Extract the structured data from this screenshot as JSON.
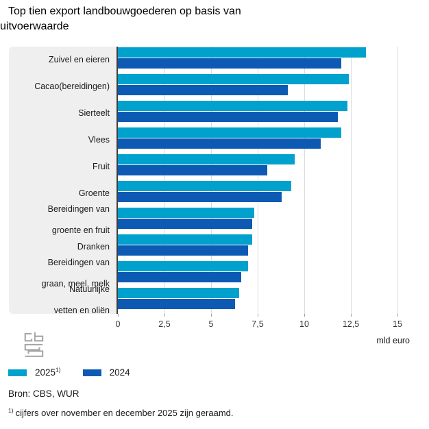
{
  "title": {
    "line1": "Top tien export landbouwgoederen op basis van",
    "line2": "uitvoerwaarde"
  },
  "chart_data": {
    "type": "bar",
    "orientation": "horizontal",
    "title": "Top tien export landbouwgoederen op basis van uitvoerwaarde",
    "xlabel": "mld euro",
    "xlim": [
      0,
      15
    ],
    "grid": true,
    "legend_position": "bottom-left",
    "x_ticks": [
      {
        "value": 0,
        "label": "0"
      },
      {
        "value": 2.5,
        "label": "2,5"
      },
      {
        "value": 5,
        "label": "5"
      },
      {
        "value": 7.5,
        "label": "7,5"
      },
      {
        "value": 10,
        "label": "10"
      },
      {
        "value": 12.5,
        "label": "12,5"
      },
      {
        "value": 15,
        "label": "15"
      }
    ],
    "categories": [
      [
        "Zuivel en eieren"
      ],
      [
        "Cacao(bereidingen)"
      ],
      [
        "Sierteelt"
      ],
      [
        "Vlees"
      ],
      [
        "Fruit"
      ],
      [
        "Groente"
      ],
      [
        "Bereidingen van",
        "groente en fruit"
      ],
      [
        "Dranken"
      ],
      [
        "Bereidingen van",
        "graan, meel, melk"
      ],
      [
        "Natuurlijke",
        "vetten en oliën"
      ]
    ],
    "series": [
      {
        "name": "2025",
        "marker": "1)",
        "color": "#00a1cd",
        "values": [
          13.3,
          12.4,
          12.3,
          12.0,
          9.5,
          9.3,
          7.3,
          7.2,
          7.0,
          6.5
        ]
      },
      {
        "name": "2024",
        "marker": "",
        "color": "#0d5ab4",
        "values": [
          12.0,
          9.1,
          11.8,
          10.9,
          8.0,
          8.8,
          7.2,
          7.0,
          6.6,
          6.3
        ]
      }
    ]
  },
  "unit_label": "mld euro",
  "legend": {
    "items": [
      {
        "label": "2025",
        "sup": "1)"
      },
      {
        "label": "2024",
        "sup": ""
      }
    ]
  },
  "source": "Bron: CBS, WUR",
  "footnote": {
    "marker": "1)",
    "text": "cijfers over november en december 2025 zijn geraamd."
  },
  "colors": {
    "series_2025": "#00a1cd",
    "series_2024": "#0d5ab4",
    "panel_bg": "#efefef",
    "gridline": "#dcdcdc",
    "axis_line": "#3f3f3f",
    "tick": "#9e9e9e"
  }
}
